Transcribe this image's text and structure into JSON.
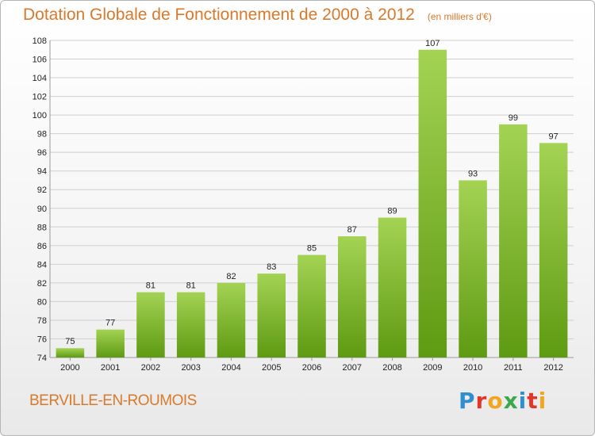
{
  "header": {
    "title": "Dotation Globale de Fonctionnement de 2000 à 2012",
    "unit": "(en milliers d'€)"
  },
  "footer": {
    "place": "BERVILLE-EN-ROUMOIS",
    "logo": [
      {
        "ch": "P",
        "color": "#2f8fd0"
      },
      {
        "ch": "r",
        "color": "#e2362a"
      },
      {
        "ch": "o",
        "color": "#f2a520"
      },
      {
        "ch": "x",
        "color": "#3aa84b"
      },
      {
        "ch": "i",
        "color": "#2f8fd0"
      },
      {
        "ch": "t",
        "color": "#e2362a"
      },
      {
        "ch": "i",
        "color": "#f2a520"
      }
    ]
  },
  "chart_data": {
    "type": "bar",
    "title": "Dotation Globale de Fonctionnement de 2000 à 2012",
    "subtitle": "(en milliers d'€)",
    "categories": [
      "2000",
      "2001",
      "2002",
      "2003",
      "2004",
      "2005",
      "2006",
      "2007",
      "2008",
      "2009",
      "2010",
      "2011",
      "2012"
    ],
    "values": [
      75,
      77,
      81,
      81,
      82,
      83,
      85,
      87,
      89,
      107,
      93,
      99,
      97
    ],
    "ylim": [
      74,
      108
    ],
    "yticks": [
      74,
      76,
      78,
      80,
      82,
      84,
      86,
      88,
      90,
      92,
      94,
      96,
      98,
      100,
      102,
      104,
      106,
      108
    ],
    "grid": true,
    "colors": {
      "bar_light": "#a4d354",
      "bar_dark": "#5e9a12",
      "grid": "#cfcfcf"
    }
  }
}
